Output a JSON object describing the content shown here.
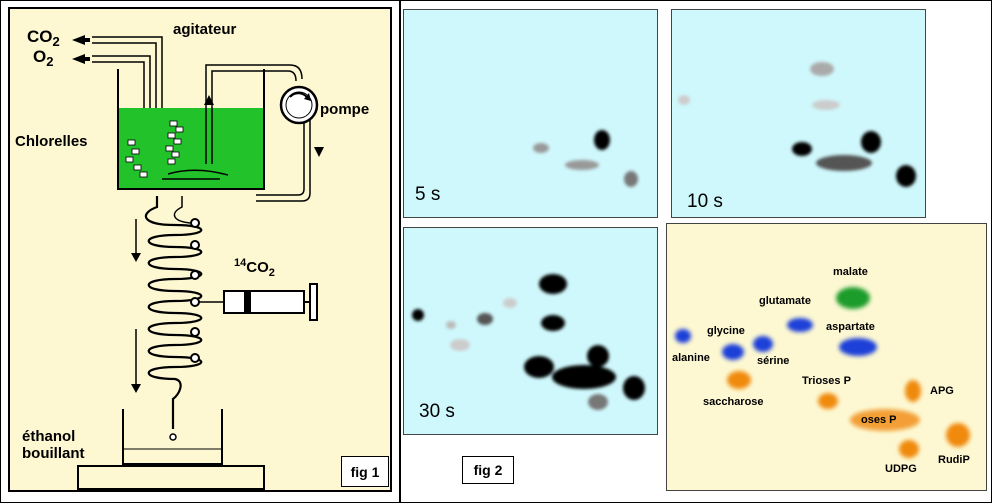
{
  "fig1": {
    "caption": "fig 1",
    "labels": {
      "co2": "CO",
      "co2_sub": "2",
      "o2": "O",
      "o2_sub": "2",
      "agitateur": "agitateur",
      "pompe": "pompe",
      "chlorelles": "Chlorelles",
      "c14_sup": "14",
      "c14_co": "CO",
      "c14_sub": "2",
      "ethanol": "éthanol",
      "bouillant": "bouillant"
    },
    "colors": {
      "background": "#fdf8d2",
      "culture": "#22c22a"
    }
  },
  "fig2": {
    "caption": "fig 2",
    "chromatograms": [
      {
        "time": "5 s"
      },
      {
        "time": "10 s"
      },
      {
        "time": "30 s"
      }
    ],
    "colors": {
      "chromatogram_bg": "#cff8fc",
      "map_bg": "#fdf8d2"
    },
    "spots": [
      {
        "name": "malate",
        "color": "#1e9c2c"
      },
      {
        "name": "glutamate",
        "color": "#1f3fd8"
      },
      {
        "name": "aspartate",
        "color": "#1f3fd8"
      },
      {
        "name": "glycine",
        "color": "#1f3fd8"
      },
      {
        "name": "alanine",
        "color": "#1f3fd8"
      },
      {
        "name": "sérine",
        "color": "#1f3fd8"
      },
      {
        "name": "Trioses P",
        "color": "#f08a10"
      },
      {
        "name": "APG",
        "color": "#f08a10"
      },
      {
        "name": "saccharose",
        "color": "#f08a10"
      },
      {
        "name": "oses P",
        "color": "#f08a10"
      },
      {
        "name": "UDPG",
        "color": "#f08a10"
      },
      {
        "name": "RudiP",
        "color": "#f08a10"
      }
    ]
  }
}
